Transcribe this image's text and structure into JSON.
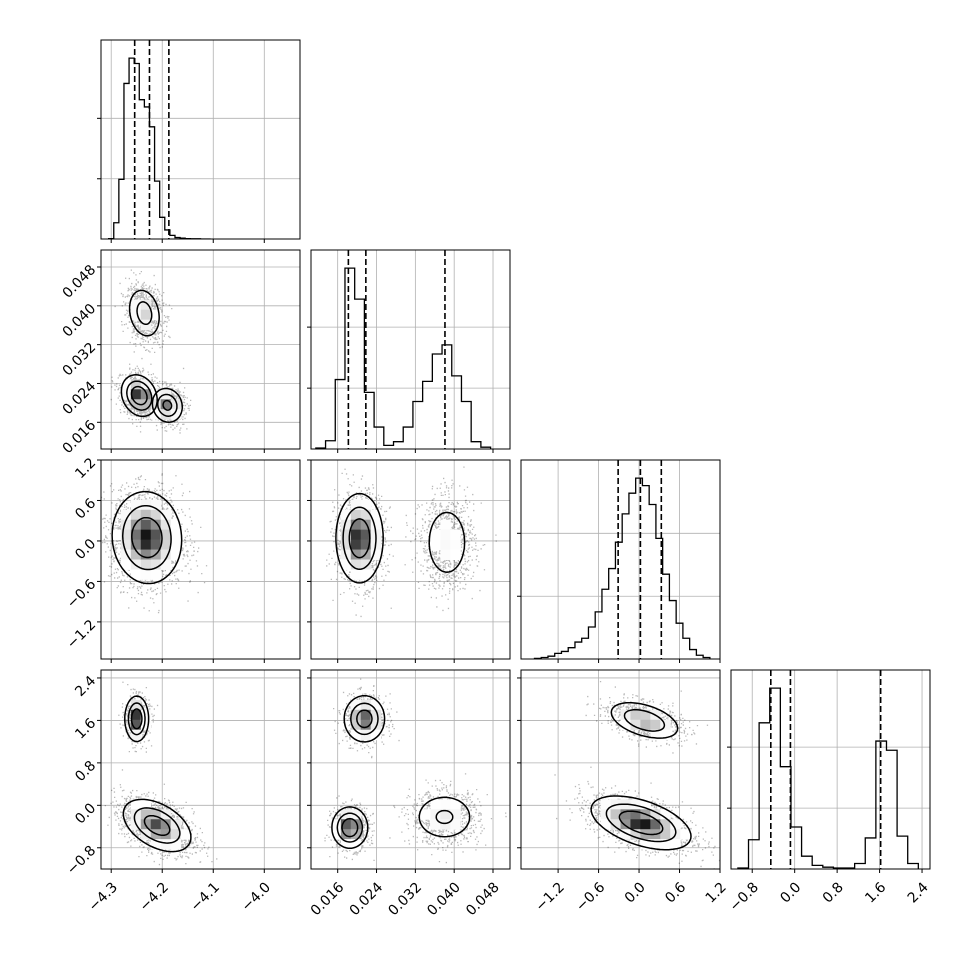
{
  "chart_data": {
    "type": "corner",
    "parameters": [
      {
        "range": [
          -4.32,
          -3.93
        ],
        "ticks": [
          "−4.3",
          "−4.2",
          "−4.1",
          "−4.0"
        ],
        "tick_values": [
          -4.3,
          -4.2,
          -4.1,
          -4.0
        ],
        "quantiles": [
          -4.254,
          -4.225,
          -4.187
        ],
        "hist_edges": [
          -4.305,
          -4.295,
          -4.285,
          -4.275,
          -4.265,
          -4.255,
          -4.245,
          -4.235,
          -4.225,
          -4.215,
          -4.205,
          -4.195,
          -4.185,
          -4.175,
          -4.165,
          -4.155,
          -4.145,
          -4.135,
          -4.125,
          -4.115,
          -4.105
        ],
        "hist_counts": [
          2,
          90,
          330,
          860,
          1000,
          970,
          770,
          730,
          620,
          320,
          120,
          50,
          20,
          8,
          5,
          2,
          1,
          1,
          0,
          0
        ],
        "hist_ticks": [
          333,
          667
        ]
      },
      {
        "range": [
          0.0105,
          0.0515
        ],
        "ticks": [
          "0.016",
          "0.024",
          "0.032",
          "0.040",
          "0.048"
        ],
        "tick_values": [
          0.016,
          0.024,
          0.032,
          0.04,
          0.048
        ],
        "quantiles": [
          0.0182,
          0.0218,
          0.0381
        ],
        "hist_edges": [
          0.0115,
          0.0135,
          0.0155,
          0.0175,
          0.0195,
          0.0215,
          0.0235,
          0.0255,
          0.0275,
          0.0295,
          0.0315,
          0.0335,
          0.0355,
          0.0375,
          0.0395,
          0.0415,
          0.0435,
          0.0455,
          0.0475
        ],
        "hist_counts": [
          5,
          45,
          380,
          990,
          820,
          310,
          120,
          20,
          40,
          120,
          260,
          370,
          520,
          570,
          400,
          260,
          40,
          10
        ],
        "hist_ticks": [
          333,
          667
        ]
      },
      {
        "range": [
          -1.75,
          1.2
        ],
        "ticks": [
          "−1.2",
          "−0.6",
          "0.0",
          "0.6",
          "1.2"
        ],
        "tick_values": [
          -1.2,
          -0.6,
          0.0,
          0.6,
          1.2
        ],
        "quantiles": [
          -0.31,
          0.02,
          0.33
        ],
        "hist_edges": [
          -1.55,
          -1.45,
          -1.35,
          -1.25,
          -1.15,
          -1.05,
          -0.95,
          -0.85,
          -0.75,
          -0.65,
          -0.55,
          -0.45,
          -0.35,
          -0.25,
          -0.15,
          -0.05,
          0.05,
          0.15,
          0.25,
          0.35,
          0.45,
          0.55,
          0.65,
          0.75,
          0.85,
          0.95,
          1.05
        ],
        "hist_counts": [
          3,
          8,
          15,
          30,
          40,
          60,
          90,
          110,
          170,
          250,
          370,
          480,
          620,
          770,
          880,
          960,
          920,
          820,
          640,
          450,
          310,
          190,
          110,
          50,
          20,
          8
        ],
        "hist_ticks": [
          333,
          667
        ]
      },
      {
        "range": [
          -1.2,
          2.55
        ],
        "ticks": [
          "−0.8",
          "0.0",
          "0.8",
          "1.6",
          "2.4"
        ],
        "tick_values": [
          -0.8,
          0.0,
          0.8,
          1.6,
          2.4
        ],
        "quantiles": [
          -0.45,
          -0.08,
          1.62
        ],
        "hist_edges": [
          -1.07,
          -0.87,
          -0.67,
          -0.47,
          -0.27,
          -0.07,
          0.13,
          0.33,
          0.53,
          0.73,
          0.93,
          1.13,
          1.33,
          1.53,
          1.73,
          1.93,
          2.13,
          2.33
        ],
        "hist_counts": [
          5,
          160,
          800,
          990,
          560,
          230,
          70,
          20,
          10,
          5,
          5,
          30,
          170,
          700,
          650,
          180,
          30
        ],
        "hist_ticks": [
          333,
          667
        ]
      }
    ],
    "pairs": [
      {
        "row": 1,
        "col": 0,
        "modes": [
          {
            "cx": -4.235,
            "cy": 0.0385,
            "sx": 0.018,
            "sy": 0.0029,
            "rho": -0.2,
            "peak": 0.55,
            "n": 900
          },
          {
            "cx": -4.245,
            "cy": 0.0215,
            "sx": 0.018,
            "sy": 0.0022,
            "rho": -0.2,
            "peak": 1.0,
            "n": 1100
          },
          {
            "cx": -4.19,
            "cy": 0.0195,
            "sx": 0.016,
            "sy": 0.0019,
            "rho": -0.1,
            "peak": 0.8,
            "n": 700
          }
        ]
      },
      {
        "row": 2,
        "col": 0,
        "modes": [
          {
            "cx": -4.23,
            "cy": 0.05,
            "sx": 0.035,
            "sy": 0.35,
            "rho": -0.05,
            "peak": 1.0,
            "n": 2200
          }
        ]
      },
      {
        "row": 2,
        "col": 1,
        "modes": [
          {
            "cx": 0.0205,
            "cy": 0.04,
            "sx": 0.0025,
            "sy": 0.34,
            "rho": 0.0,
            "peak": 1.0,
            "n": 1300
          },
          {
            "cx": 0.0385,
            "cy": -0.02,
            "sx": 0.0028,
            "sy": 0.34,
            "rho": 0.0,
            "peak": 0.35,
            "n": 1000
          }
        ]
      },
      {
        "row": 3,
        "col": 0,
        "modes": [
          {
            "cx": -4.25,
            "cy": 1.63,
            "sx": 0.012,
            "sy": 0.22,
            "rho": 0.0,
            "peak": 1.0,
            "n": 600
          },
          {
            "cx": -4.21,
            "cy": -0.38,
            "sx": 0.035,
            "sy": 0.26,
            "rho": -0.45,
            "peak": 0.9,
            "n": 1700
          }
        ]
      },
      {
        "row": 3,
        "col": 1,
        "modes": [
          {
            "cx": 0.0215,
            "cy": 1.63,
            "sx": 0.0022,
            "sy": 0.23,
            "rho": 0.0,
            "peak": 0.9,
            "n": 700
          },
          {
            "cx": 0.0185,
            "cy": -0.42,
            "sx": 0.0019,
            "sy": 0.2,
            "rho": 0.0,
            "peak": 1.0,
            "n": 900
          },
          {
            "cx": 0.038,
            "cy": -0.22,
            "sx": 0.0035,
            "sy": 0.25,
            "rho": 0.0,
            "peak": 0.45,
            "n": 900
          }
        ]
      },
      {
        "row": 3,
        "col": 2,
        "modes": [
          {
            "cx": 0.08,
            "cy": 1.6,
            "sx": 0.28,
            "sy": 0.19,
            "rho": -0.45,
            "peak": 0.7,
            "n": 900
          },
          {
            "cx": 0.03,
            "cy": -0.33,
            "sx": 0.38,
            "sy": 0.26,
            "rho": -0.5,
            "peak": 1.0,
            "n": 1700
          }
        ]
      }
    ],
    "contour_levels": [
      0.15,
      0.4,
      0.7
    ],
    "grid": true,
    "color": "#000000"
  }
}
